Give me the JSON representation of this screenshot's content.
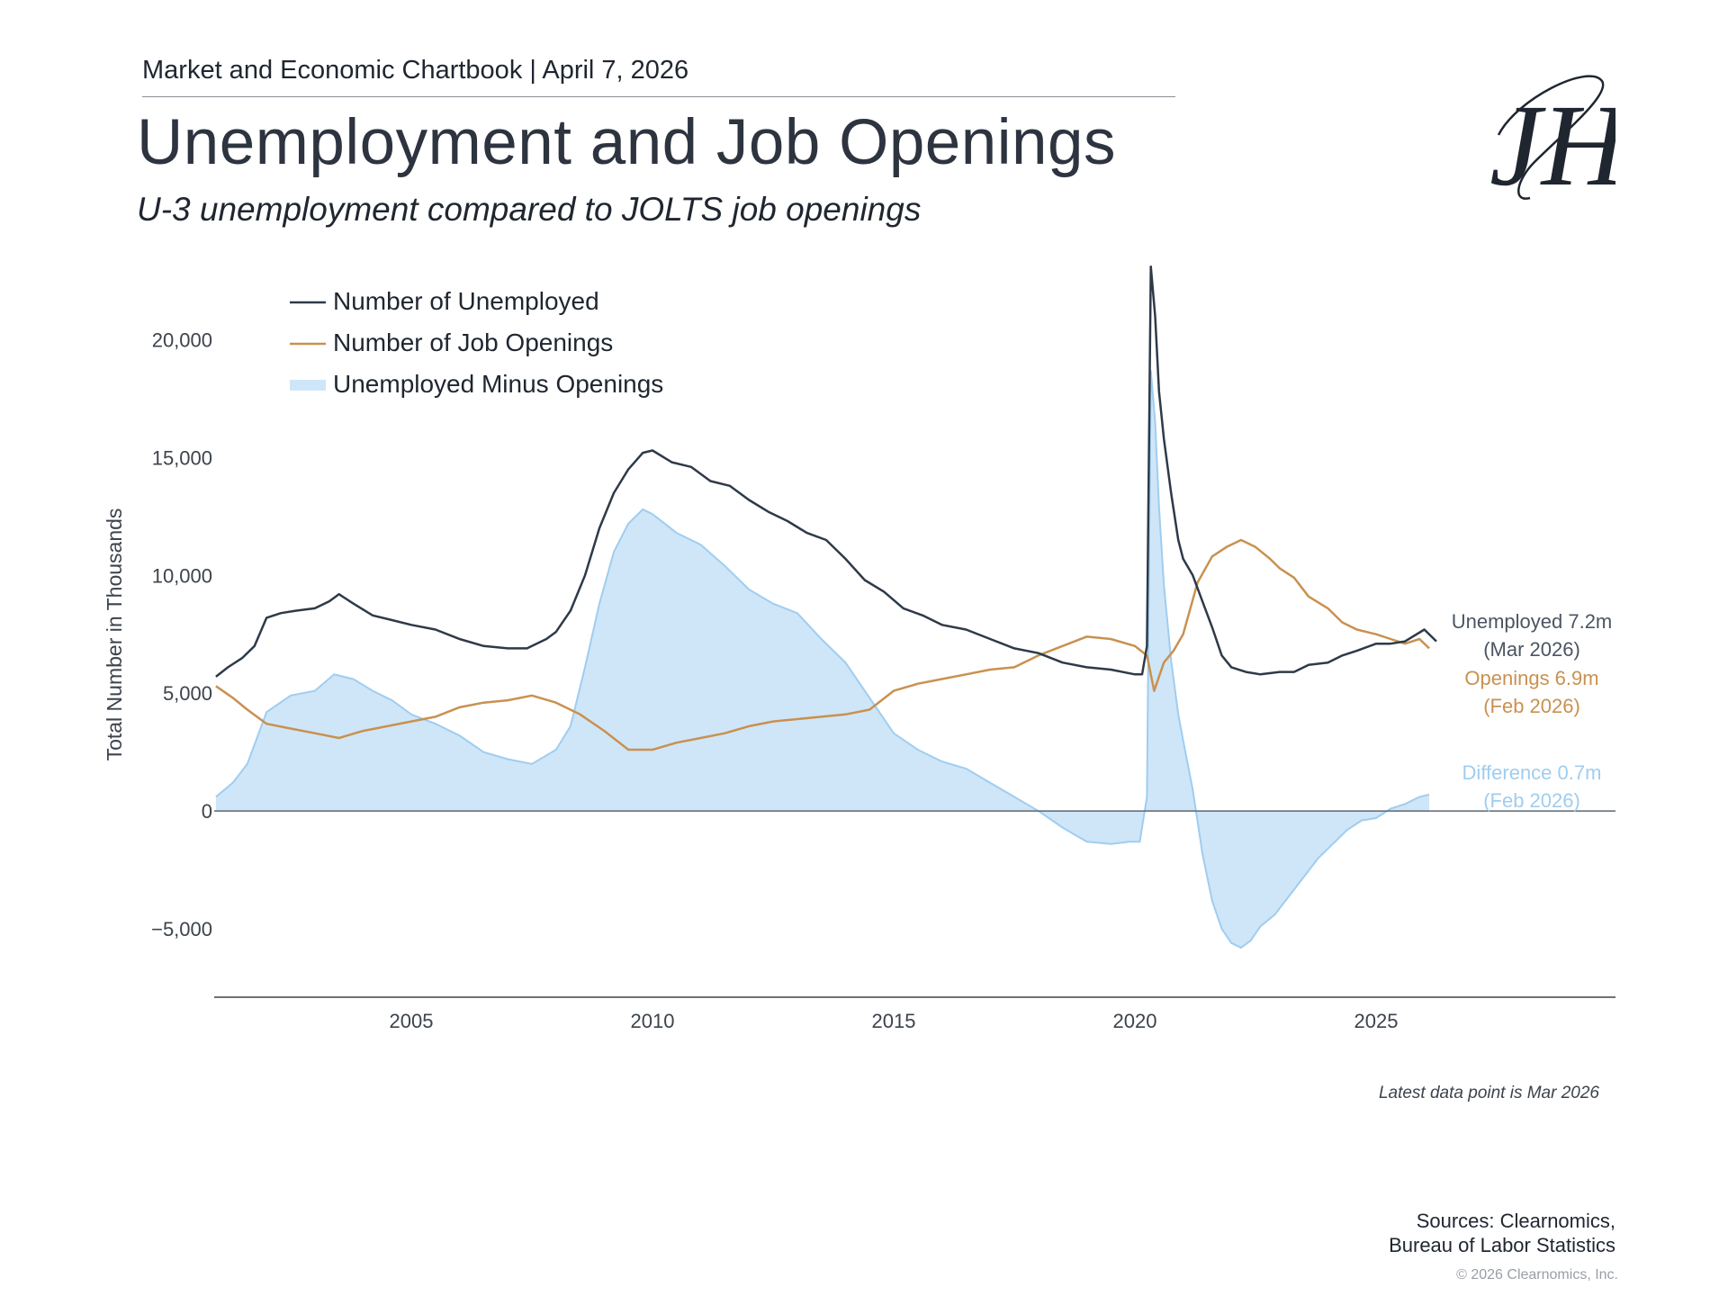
{
  "header": {
    "chartbook": "Market and Economic Chartbook | April 7, 2026",
    "title": "Unemployment and Job Openings",
    "subtitle": "U-3 unemployment compared to JOLTS job openings",
    "logo_text": "JH"
  },
  "colors": {
    "unemployed": "#2e3a48",
    "openings": "#c99150",
    "difference_fill": "#cfe6f8",
    "difference_stroke": "#9fcdf0",
    "zero_line": "#5d6670",
    "axis_text": "#3c434c",
    "axis_line": "#3c434c"
  },
  "chart_data": {
    "type": "line",
    "ylabel": "Total Number in Thousands",
    "xlabel": "",
    "ylim": [
      -7900,
      23300
    ],
    "xlim": [
      2000.95,
      2030.0
    ],
    "y_ticks": [
      {
        "value": -5000,
        "label": "−5,000"
      },
      {
        "value": 0,
        "label": "0"
      },
      {
        "value": 5000,
        "label": "5,000"
      },
      {
        "value": 10000,
        "label": "10,000"
      },
      {
        "value": 15000,
        "label": "15,000"
      },
      {
        "value": 20000,
        "label": "20,000"
      }
    ],
    "x_ticks": [
      {
        "value": 2005,
        "label": "2005"
      },
      {
        "value": 2010,
        "label": "2010"
      },
      {
        "value": 2015,
        "label": "2015"
      },
      {
        "value": 2020,
        "label": "2020"
      },
      {
        "value": 2025,
        "label": "2025"
      }
    ],
    "legend": [
      {
        "name": "Number of Unemployed",
        "kind": "line",
        "series": "unemployed"
      },
      {
        "name": "Number of Job Openings",
        "kind": "line",
        "series": "openings"
      },
      {
        "name": "Unemployed Minus Openings",
        "kind": "area",
        "series": "difference"
      }
    ],
    "series": [
      {
        "name": "Number of Unemployed",
        "x": [
          2000.95,
          2001.2,
          2001.5,
          2001.75,
          2002.0,
          2002.3,
          2002.6,
          2003.0,
          2003.3,
          2003.5,
          2003.8,
          2004.2,
          2004.6,
          2005.0,
          2005.5,
          2006.0,
          2006.5,
          2007.0,
          2007.4,
          2007.8,
          2008.0,
          2008.3,
          2008.6,
          2008.9,
          2009.2,
          2009.5,
          2009.8,
          2010.0,
          2010.4,
          2010.8,
          2011.2,
          2011.6,
          2012.0,
          2012.4,
          2012.8,
          2013.2,
          2013.6,
          2014.0,
          2014.4,
          2014.8,
          2015.2,
          2015.6,
          2016.0,
          2016.5,
          2017.0,
          2017.5,
          2018.0,
          2018.5,
          2019.0,
          2019.5,
          2020.0,
          2020.15,
          2020.25,
          2020.33,
          2020.42,
          2020.5,
          2020.6,
          2020.75,
          2020.9,
          2021.0,
          2021.2,
          2021.4,
          2021.6,
          2021.8,
          2022.0,
          2022.3,
          2022.6,
          2023.0,
          2023.3,
          2023.6,
          2024.0,
          2024.3,
          2024.6,
          2025.0,
          2025.3,
          2025.6,
          2026.0,
          2026.25
        ],
        "values": [
          5700,
          6100,
          6500,
          7000,
          8200,
          8400,
          8500,
          8600,
          8900,
          9200,
          8800,
          8300,
          8100,
          7900,
          7700,
          7300,
          7000,
          6900,
          6900,
          7300,
          7600,
          8500,
          10000,
          12000,
          13500,
          14500,
          15200,
          15300,
          14800,
          14600,
          14000,
          13800,
          13200,
          12700,
          12300,
          11800,
          11500,
          10700,
          9800,
          9300,
          8600,
          8300,
          7900,
          7700,
          7300,
          6900,
          6700,
          6300,
          6100,
          6000,
          5800,
          5800,
          7000,
          23100,
          21000,
          17800,
          15800,
          13500,
          11500,
          10700,
          10000,
          8900,
          7800,
          6600,
          6100,
          5900,
          5800,
          5900,
          5900,
          6200,
          6300,
          6600,
          6800,
          7100,
          7100,
          7200,
          7700,
          7200
        ]
      },
      {
        "name": "Number of Job Openings",
        "x": [
          2000.95,
          2001.3,
          2001.6,
          2002.0,
          2002.5,
          2003.0,
          2003.5,
          2004.0,
          2004.5,
          2005.0,
          2005.5,
          2006.0,
          2006.5,
          2007.0,
          2007.5,
          2008.0,
          2008.5,
          2009.0,
          2009.5,
          2010.0,
          2010.5,
          2011.0,
          2011.5,
          2012.0,
          2012.5,
          2013.0,
          2013.5,
          2014.0,
          2014.5,
          2015.0,
          2015.5,
          2016.0,
          2016.5,
          2017.0,
          2017.5,
          2018.0,
          2018.5,
          2019.0,
          2019.5,
          2020.0,
          2020.25,
          2020.4,
          2020.6,
          2020.8,
          2021.0,
          2021.3,
          2021.6,
          2021.9,
          2022.2,
          2022.5,
          2022.8,
          2023.0,
          2023.3,
          2023.6,
          2024.0,
          2024.3,
          2024.6,
          2025.0,
          2025.3,
          2025.6,
          2025.9,
          2026.1
        ],
        "values": [
          5300,
          4800,
          4300,
          3700,
          3500,
          3300,
          3100,
          3400,
          3600,
          3800,
          4000,
          4400,
          4600,
          4700,
          4900,
          4600,
          4100,
          3400,
          2600,
          2600,
          2900,
          3100,
          3300,
          3600,
          3800,
          3900,
          4000,
          4100,
          4300,
          5100,
          5400,
          5600,
          5800,
          6000,
          6100,
          6600,
          7000,
          7400,
          7300,
          7000,
          6600,
          5100,
          6300,
          6800,
          7500,
          9700,
          10800,
          11200,
          11500,
          11200,
          10700,
          10300,
          9900,
          9100,
          8600,
          8000,
          7700,
          7500,
          7300,
          7100,
          7300,
          6900
        ]
      },
      {
        "name": "Unemployed Minus Openings",
        "x": [
          2000.95,
          2001.3,
          2001.6,
          2002.0,
          2002.5,
          2003.0,
          2003.4,
          2003.8,
          2004.2,
          2004.6,
          2005.0,
          2005.5,
          2006.0,
          2006.5,
          2007.0,
          2007.5,
          2008.0,
          2008.3,
          2008.6,
          2008.9,
          2009.2,
          2009.5,
          2009.8,
          2010.0,
          2010.5,
          2011.0,
          2011.5,
          2012.0,
          2012.5,
          2013.0,
          2013.5,
          2014.0,
          2014.5,
          2015.0,
          2015.5,
          2016.0,
          2016.5,
          2017.0,
          2017.5,
          2018.0,
          2018.5,
          2019.0,
          2019.5,
          2019.9,
          2020.1,
          2020.25,
          2020.33,
          2020.42,
          2020.5,
          2020.6,
          2020.75,
          2020.9,
          2021.0,
          2021.2,
          2021.4,
          2021.6,
          2021.8,
          2022.0,
          2022.2,
          2022.4,
          2022.6,
          2022.9,
          2023.2,
          2023.5,
          2023.8,
          2024.1,
          2024.4,
          2024.7,
          2025.0,
          2025.3,
          2025.6,
          2025.9,
          2026.1
        ],
        "values": [
          600,
          1200,
          2000,
          4200,
          4900,
          5100,
          5800,
          5600,
          5100,
          4700,
          4100,
          3700,
          3200,
          2500,
          2200,
          2000,
          2600,
          3600,
          6100,
          8800,
          11000,
          12200,
          12800,
          12600,
          11800,
          11300,
          10400,
          9400,
          8800,
          8400,
          7300,
          6300,
          4800,
          3300,
          2600,
          2100,
          1800,
          1200,
          600,
          0,
          -700,
          -1300,
          -1400,
          -1300,
          -1300,
          600,
          18700,
          16500,
          12900,
          9600,
          6400,
          4100,
          3000,
          900,
          -1800,
          -3800,
          -5000,
          -5600,
          -5800,
          -5500,
          -4900,
          -4400,
          -3600,
          -2800,
          -2000,
          -1400,
          -800,
          -400,
          -300,
          100,
          300,
          600,
          700
        ]
      }
    ],
    "end_labels": [
      {
        "series": "unemployed",
        "line1": "Unemployed 7.2m",
        "line2": "(Mar 2026)"
      },
      {
        "series": "openings",
        "line1": "Openings 6.9m",
        "line2": "(Feb 2026)"
      },
      {
        "series": "difference",
        "line1": "Difference 0.7m",
        "line2": "(Feb 2026)"
      }
    ],
    "note": "Latest data point is Mar 2026"
  },
  "footer": {
    "sources_line1": "Sources: Clearnomics,",
    "sources_line2": "Bureau of Labor Statistics",
    "copyright": "© 2026 Clearnomics, Inc."
  }
}
